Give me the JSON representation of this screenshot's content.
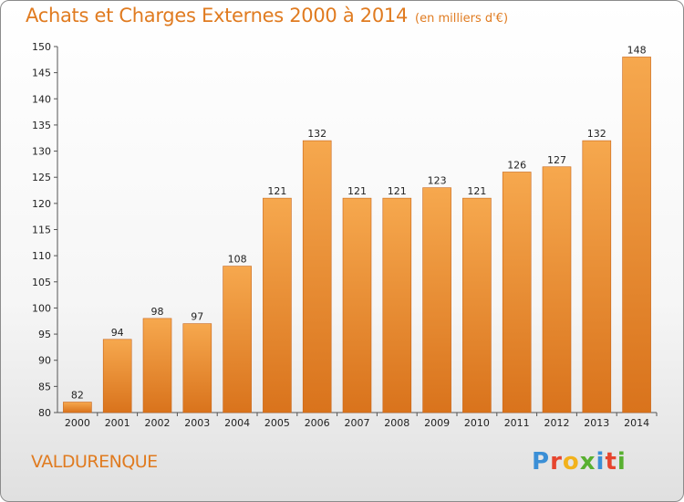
{
  "chart_data": {
    "type": "bar",
    "title": "Achats et Charges Externes 2000 à 2014",
    "subtitle": "(en milliers d'€)",
    "categories": [
      "2000",
      "2001",
      "2002",
      "2003",
      "2004",
      "2005",
      "2006",
      "2007",
      "2008",
      "2009",
      "2010",
      "2011",
      "2012",
      "2013",
      "2014"
    ],
    "values": [
      82,
      94,
      98,
      97,
      108,
      121,
      132,
      121,
      121,
      123,
      121,
      126,
      127,
      132,
      148
    ],
    "ylim": [
      80,
      150
    ],
    "yticks": [
      80,
      85,
      90,
      95,
      100,
      105,
      110,
      115,
      120,
      125,
      130,
      135,
      140,
      145,
      150
    ],
    "grid": false,
    "bar_color_top": "#f6a84e",
    "bar_color_bottom": "#d9731c"
  },
  "footer": {
    "commune": "VALDURENQUE",
    "logo_letters": [
      {
        "char": "P",
        "color": "#3b8fd6"
      },
      {
        "char": "r",
        "color": "#e6452e"
      },
      {
        "char": "o",
        "color": "#f2b21c"
      },
      {
        "char": "x",
        "color": "#58b030"
      },
      {
        "char": "i",
        "color": "#3b8fd6"
      },
      {
        "char": "t",
        "color": "#e6452e"
      },
      {
        "char": "i",
        "color": "#58b030"
      }
    ]
  }
}
